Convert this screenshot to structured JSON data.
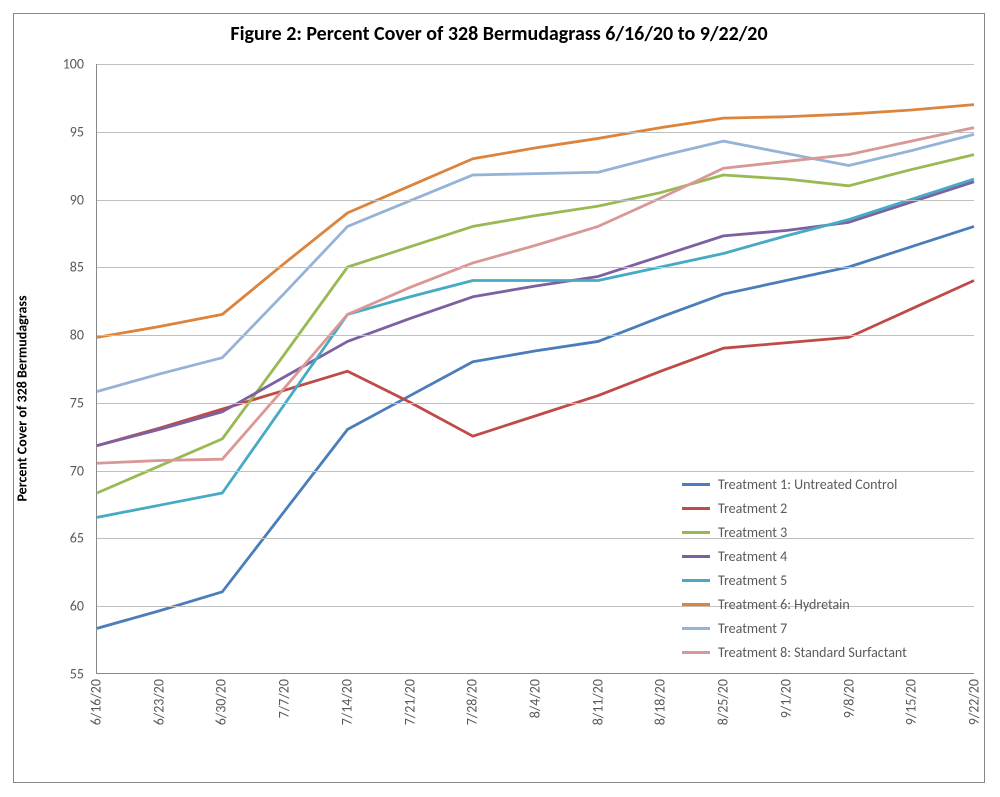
{
  "chart": {
    "type": "line",
    "title": "Figure 2: Percent Cover of 328 Bermudagrass 6/16/20 to 9/22/20",
    "title_fontsize": 20,
    "ylabel": "Percent Cover of 328 Bermudagrass",
    "ylabel_fontsize": 14,
    "background_color": "#ffffff",
    "grid_color": "#bfbfbf",
    "border_color": "#888888",
    "tick_font_color": "#595959",
    "tick_fontsize": 14,
    "ylim": [
      55,
      100
    ],
    "ytick_step": 5,
    "yticks": [
      55,
      60,
      65,
      70,
      75,
      80,
      85,
      90,
      95,
      100
    ],
    "x_categories": [
      "6/16/20",
      "6/23/20",
      "6/30/20",
      "7/7/20",
      "7/14/20",
      "7/21/20",
      "7/28/20",
      "8/4/20",
      "8/11/20",
      "8/18/20",
      "8/25/20",
      "9/1/20",
      "9/8/20",
      "9/15/20",
      "9/22/20"
    ],
    "line_width": 2.8,
    "legend": {
      "position": "inside-bottom-right",
      "fontsize": 14
    },
    "series": [
      {
        "name": "Treatment 1: Untreated Control",
        "color": "#4a7ebb",
        "values": [
          58.3,
          59.6,
          61.0,
          67.0,
          73.0,
          75.5,
          78.0,
          78.8,
          79.5,
          81.3,
          83.0,
          84.0,
          85.0,
          86.5,
          88.0
        ]
      },
      {
        "name": "Treatment 2",
        "color": "#be4b48",
        "values": [
          71.8,
          73.1,
          74.5,
          75.9,
          77.3,
          75.0,
          72.5,
          74.0,
          75.5,
          77.3,
          79.0,
          79.4,
          79.8,
          81.9,
          84.0
        ]
      },
      {
        "name": "Treatment 3",
        "color": "#98b954",
        "values": [
          68.3,
          70.3,
          72.3,
          78.6,
          85.0,
          86.5,
          88.0,
          88.8,
          89.5,
          90.5,
          91.8,
          91.5,
          91.0,
          92.2,
          93.3
        ]
      },
      {
        "name": "Treatment 4",
        "color": "#7d60a0",
        "values": [
          71.8,
          73.0,
          74.3,
          76.9,
          79.5,
          81.2,
          82.8,
          83.6,
          84.3,
          85.8,
          87.3,
          87.7,
          88.3,
          89.8,
          91.3
        ]
      },
      {
        "name": "Treatment 5",
        "color": "#46aac5",
        "values": [
          66.5,
          67.4,
          68.3,
          74.9,
          81.5,
          82.8,
          84.0,
          84.0,
          84.0,
          85.0,
          86.0,
          87.3,
          88.5,
          90.0,
          91.5
        ]
      },
      {
        "name": "Treatment 6: Hydretain",
        "color": "#db843d",
        "values": [
          79.8,
          80.6,
          81.5,
          85.3,
          89.0,
          91.0,
          93.0,
          93.8,
          94.5,
          95.3,
          96.0,
          96.1,
          96.3,
          96.6,
          97.0
        ]
      },
      {
        "name": "Treatment 7",
        "color": "#95b3d7",
        "values": [
          75.8,
          77.1,
          78.3,
          83.1,
          88.0,
          89.9,
          91.8,
          91.9,
          92.0,
          93.2,
          94.3,
          93.4,
          92.5,
          93.6,
          94.8
        ]
      },
      {
        "name": "Treatment 8: Standard Surfactant",
        "color": "#d99795",
        "values": [
          70.5,
          70.7,
          70.8,
          76.1,
          81.5,
          83.5,
          85.3,
          86.6,
          88.0,
          90.1,
          92.3,
          92.8,
          93.3,
          94.3,
          95.3
        ]
      }
    ]
  }
}
